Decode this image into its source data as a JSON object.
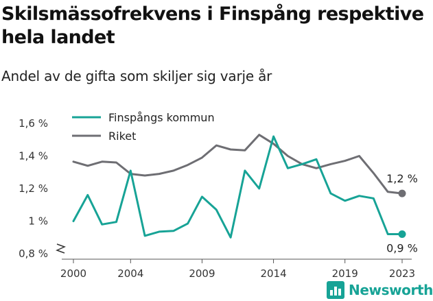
{
  "title": "Skilsmässofrekvens i Finspång respektive hela landet",
  "subtitle": "Andel av de gifta som skiljer sig varje år",
  "brand": "Newsworthy",
  "chart_data": {
    "type": "line",
    "title": "Skilsmässofrekvens i Finspång respektive hela landet",
    "subtitle": "Andel av de gifta som skiljer sig varje år",
    "x": [
      2000,
      2001,
      2002,
      2003,
      2004,
      2005,
      2006,
      2007,
      2008,
      2009,
      2010,
      2011,
      2012,
      2013,
      2014,
      2015,
      2016,
      2017,
      2018,
      2019,
      2020,
      2021,
      2022,
      2023
    ],
    "xticks": [
      2000,
      2004,
      2009,
      2014,
      2019,
      2023
    ],
    "xtick_labels": [
      "2000",
      "2004",
      "2009",
      "2014",
      "2019",
      "2023"
    ],
    "ylim": [
      0.8,
      1.6
    ],
    "yticks": [
      0.8,
      1.0,
      1.2,
      1.4,
      1.6
    ],
    "ytick_labels": [
      "0,8 %",
      "1 %",
      "1,2 %",
      "1,4 %",
      "1,6 %"
    ],
    "axis_break": true,
    "legend_position": "top-left",
    "grid": false,
    "series": [
      {
        "name": "Finspångs kommun",
        "color": "#17a396",
        "values": [
          1.0,
          1.16,
          0.98,
          0.995,
          1.31,
          0.91,
          0.935,
          0.94,
          0.985,
          1.15,
          1.07,
          0.9,
          1.31,
          1.2,
          1.52,
          1.325,
          1.35,
          1.38,
          1.17,
          1.125,
          1.155,
          1.14,
          0.92,
          0.92
        ],
        "end_label": "0,9 %"
      },
      {
        "name": "Riket",
        "color": "#6e6e73",
        "values": [
          1.365,
          1.34,
          1.365,
          1.36,
          1.29,
          1.28,
          1.29,
          1.31,
          1.345,
          1.39,
          1.465,
          1.44,
          1.435,
          1.53,
          1.475,
          1.4,
          1.35,
          1.325,
          1.35,
          1.37,
          1.4,
          1.295,
          1.18,
          1.17
        ],
        "end_label": "1,2 %"
      }
    ]
  }
}
